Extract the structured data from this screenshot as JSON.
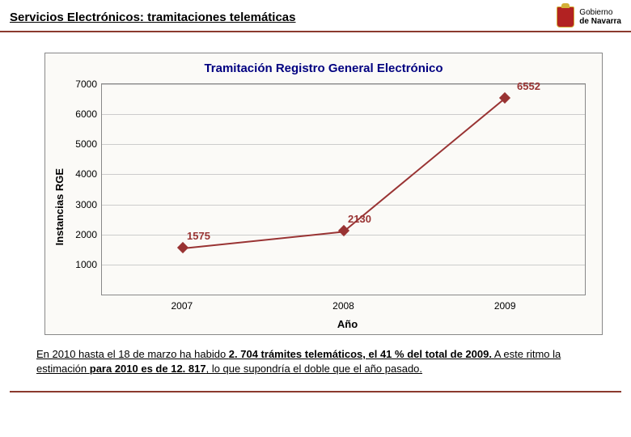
{
  "header": {
    "title": "Servicios Electrónicos: tramitaciones telemáticas",
    "logo_line1": "Gobierno",
    "logo_line2": "de Navarra"
  },
  "chart": {
    "type": "line",
    "title": "Tramitación Registro General Electrónico",
    "title_color": "#000080",
    "title_fontsize": 15,
    "ylabel": "Instancias RGE",
    "xlabel": "Año",
    "categories": [
      "2007",
      "2008",
      "2009"
    ],
    "values": [
      1575,
      2130,
      6552
    ],
    "data_labels": [
      "1575",
      "2130",
      "6552"
    ],
    "line_color": "#993333",
    "marker_style": "diamond",
    "marker_color": "#993333",
    "line_width": 2,
    "ylim": [
      0,
      7000
    ],
    "yticks": [
      1000,
      2000,
      3000,
      4000,
      5000,
      6000,
      7000
    ],
    "background_color": "#fbfaf7",
    "grid_color": "#cccccc",
    "border_color": "#888888",
    "label_fontsize": 13,
    "tick_fontsize": 12
  },
  "footer": {
    "p1a": "En 2010 hasta el 18 de marzo  ha habido ",
    "p1b": "2. 704 trámites telemáticos, el 41 % del total de 2009.",
    "p2a": " A este ritmo la estimación ",
    "p2b": "para 2010 es de 12. 817",
    "p2c": ", lo que supondría el doble que el año pasado."
  },
  "colors": {
    "rule": "#8b3a2e",
    "logo_shield": "#b22222",
    "logo_gold": "#d4af37"
  }
}
